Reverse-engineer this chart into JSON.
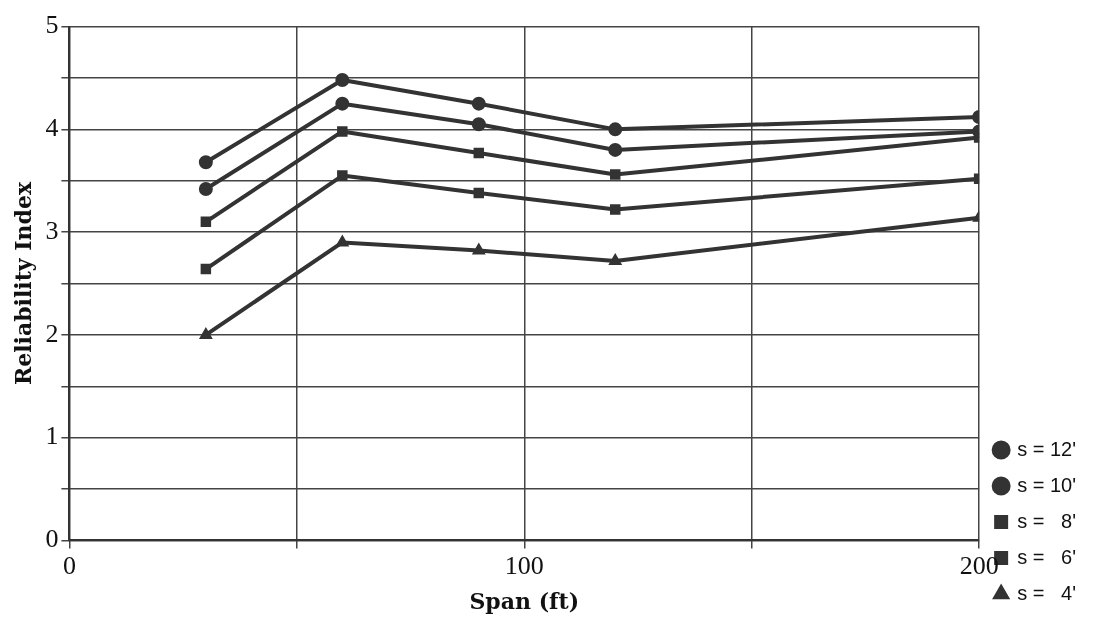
{
  "chart_data": {
    "type": "line",
    "xlabel": "Span (ft)",
    "ylabel": "Reliability Index",
    "xlim": [
      0,
      200
    ],
    "xticks": [
      0,
      {
        "value": 50,
        "label": null
      },
      100,
      {
        "value": 150,
        "label": null
      },
      200
    ],
    "ylim": [
      0,
      5
    ],
    "yticks": [
      0,
      {
        "value": 0.5,
        "label": null
      },
      1,
      {
        "value": 1.5,
        "label": null
      },
      2,
      {
        "value": 2.5,
        "label": null
      },
      3,
      {
        "value": 3.5,
        "label": null
      },
      4,
      {
        "value": 4.5,
        "label": null
      },
      5
    ],
    "grid": true,
    "legend": "bottom right",
    "line_style": "solid",
    "series": [
      {
        "name": "s = 12'",
        "color": "#333333",
        "marker": "circle",
        "x": [
          30,
          60,
          90,
          120,
          200
        ],
        "values": [
          3.68,
          4.48,
          4.25,
          4.0,
          4.12
        ]
      },
      {
        "name": "s = 10'",
        "color": "#333333",
        "marker": "circle",
        "x": [
          30,
          60,
          90,
          120,
          200
        ],
        "values": [
          3.42,
          4.25,
          4.05,
          3.8,
          3.98
        ]
      },
      {
        "name": "s =   8'",
        "color": "#333333",
        "marker": "square",
        "x": [
          30,
          60,
          90,
          120,
          200
        ],
        "values": [
          3.1,
          3.98,
          3.77,
          3.56,
          3.92
        ]
      },
      {
        "name": "s =   6'",
        "color": "#333333",
        "marker": "square",
        "x": [
          30,
          60,
          90,
          120,
          200
        ],
        "values": [
          2.64,
          3.55,
          3.38,
          3.22,
          3.52
        ]
      },
      {
        "name": "s =   4'",
        "color": "#333333",
        "marker": "triangle",
        "x": [
          30,
          60,
          90,
          120,
          200
        ],
        "values": [
          2.0,
          2.9,
          2.82,
          2.72,
          3.14
        ]
      }
    ]
  }
}
